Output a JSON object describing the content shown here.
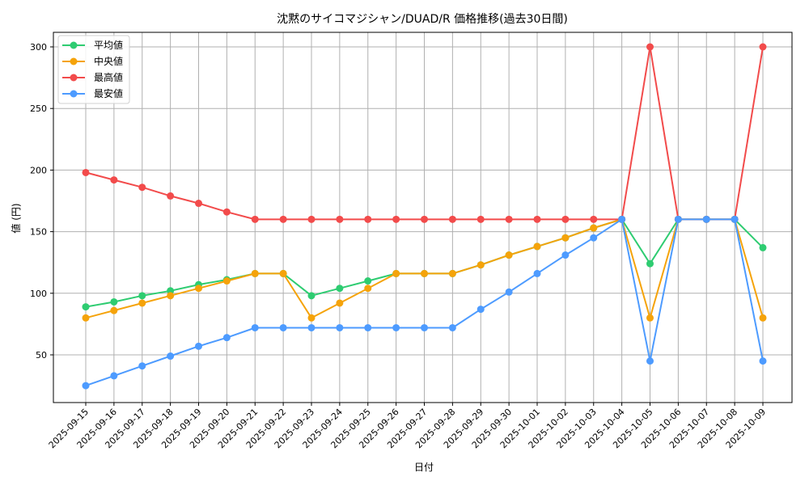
{
  "chart_data": {
    "type": "line",
    "title": "沈黙のサイコマジシャン/DUAD/R 価格推移(過去30日間)",
    "xlabel": "日付",
    "ylabel": "値 (円)",
    "ylim": [
      12,
      313
    ],
    "yticks": [
      50,
      100,
      150,
      200,
      250,
      300
    ],
    "grid": true,
    "legend_position": "upper left",
    "categories": [
      "2025-09-15",
      "2025-09-16",
      "2025-09-17",
      "2025-09-18",
      "2025-09-19",
      "2025-09-20",
      "2025-09-21",
      "2025-09-22",
      "2025-09-23",
      "2025-09-24",
      "2025-09-25",
      "2025-09-26",
      "2025-09-27",
      "2025-09-28",
      "2025-09-29",
      "2025-09-30",
      "2025-10-01",
      "2025-10-02",
      "2025-10-03",
      "2025-10-04",
      "2025-10-05",
      "2025-10-06",
      "2025-10-07",
      "2025-10-08",
      "2025-10-09"
    ],
    "series": [
      {
        "name": "平均値",
        "color": "#2ecc71",
        "values": [
          89,
          93,
          98,
          102,
          107,
          111,
          116,
          116,
          98,
          104,
          110,
          116,
          116,
          116,
          123,
          131,
          138,
          145,
          153,
          160,
          124,
          160,
          160,
          160,
          137
        ]
      },
      {
        "name": "中央値",
        "color": "#f5a30a",
        "values": [
          80,
          86,
          92,
          98,
          104,
          110,
          116,
          116,
          80,
          92,
          104,
          116,
          116,
          116,
          123,
          131,
          138,
          145,
          153,
          160,
          80,
          160,
          160,
          160,
          80
        ]
      },
      {
        "name": "最高値",
        "color": "#f24b4b",
        "values": [
          198,
          192,
          186,
          179,
          173,
          166,
          160,
          160,
          160,
          160,
          160,
          160,
          160,
          160,
          160,
          160,
          160,
          160,
          160,
          160,
          300,
          160,
          160,
          160,
          300
        ]
      },
      {
        "name": "最安値",
        "color": "#4d9bff",
        "values": [
          25,
          33,
          41,
          49,
          57,
          64,
          72,
          72,
          72,
          72,
          72,
          72,
          72,
          72,
          87,
          101,
          116,
          131,
          145,
          160,
          45,
          160,
          160,
          160,
          45
        ]
      }
    ]
  }
}
